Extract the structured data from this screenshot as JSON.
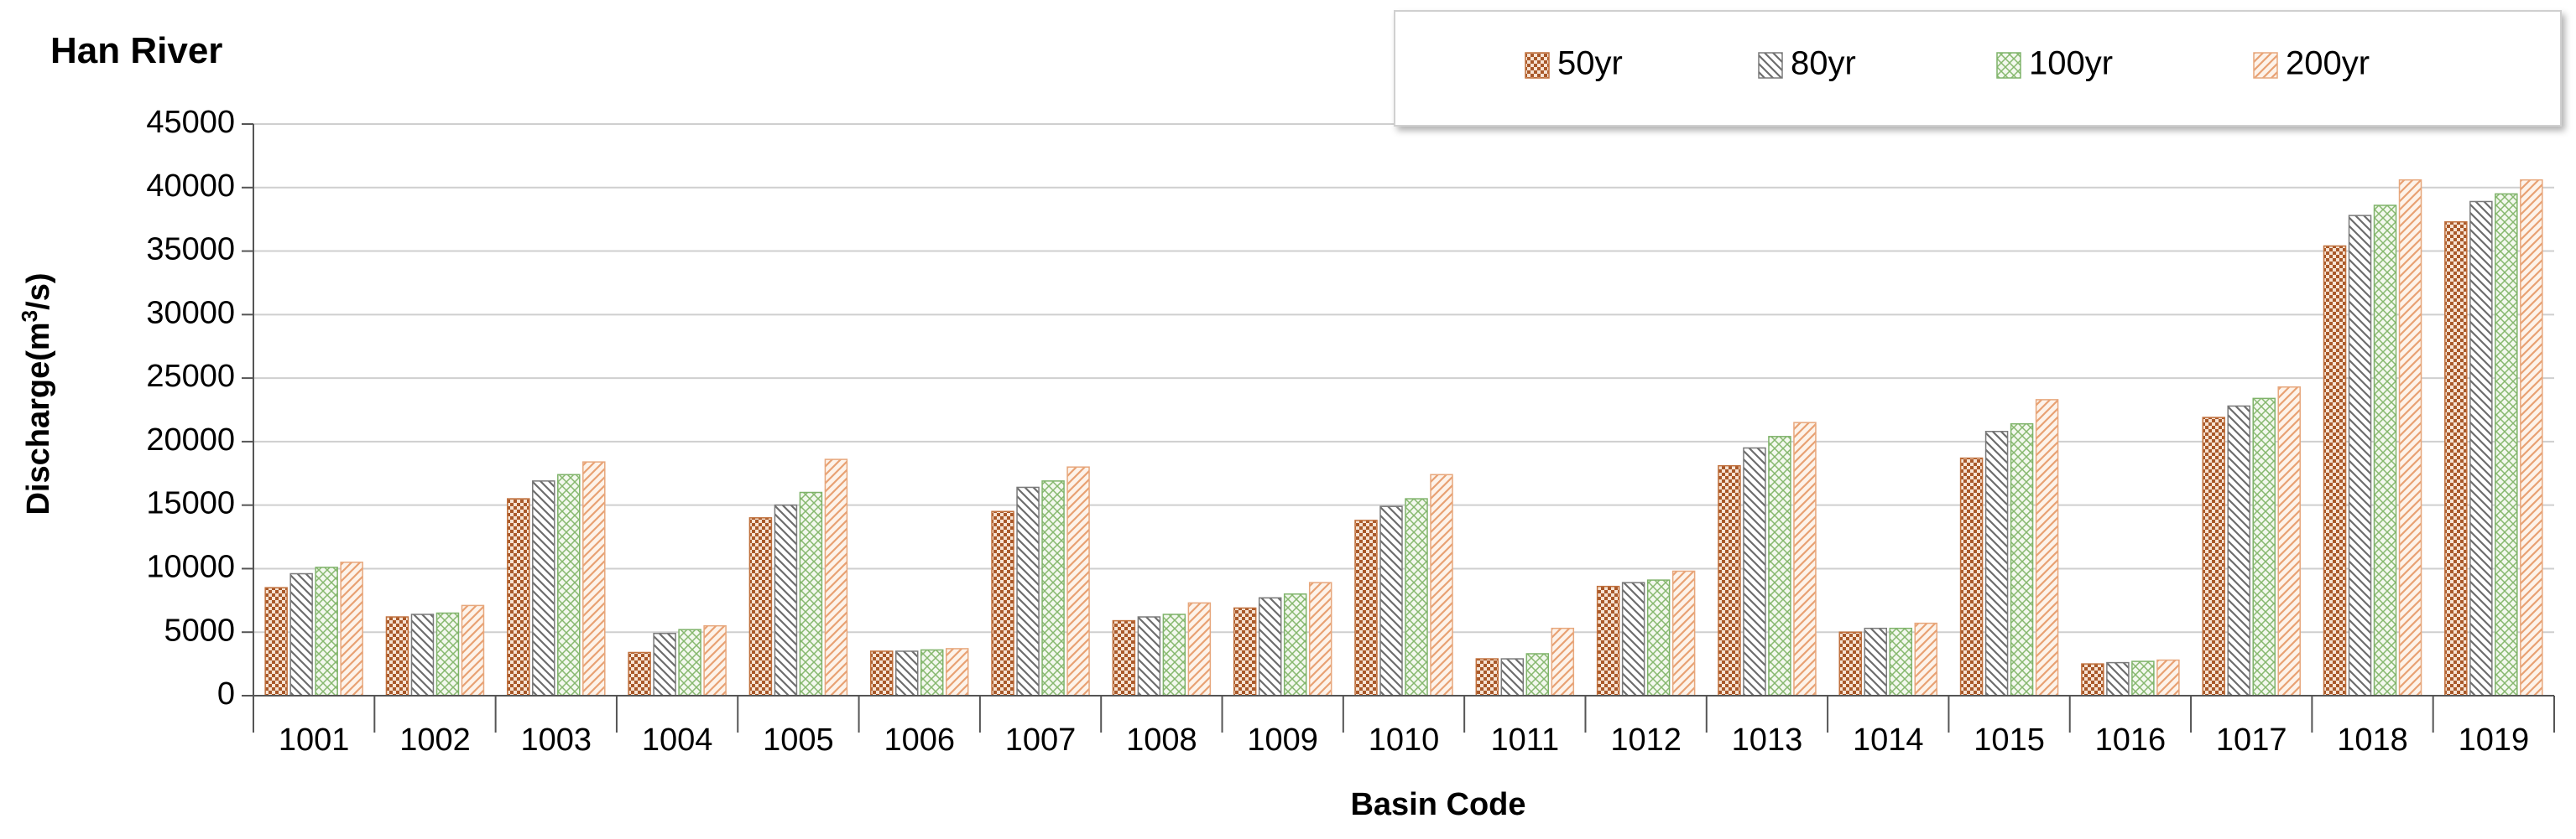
{
  "chart_data": {
    "type": "bar",
    "title": "Han River",
    "xlabel": "Basin Code",
    "ylabel": "Discharge(m³/s)",
    "ylabel_parts": {
      "before": "Discharge(m",
      "sup": "3",
      "after": "/s)"
    },
    "ylim": [
      0,
      45000
    ],
    "yticks": [
      0,
      5000,
      10000,
      15000,
      20000,
      25000,
      30000,
      35000,
      40000,
      45000
    ],
    "grid": true,
    "legend_position": "top-right",
    "categories": [
      "1001",
      "1002",
      "1003",
      "1004",
      "1005",
      "1006",
      "1007",
      "1008",
      "1009",
      "1010",
      "1011",
      "1012",
      "1013",
      "1014",
      "1015",
      "1016",
      "1017",
      "1018",
      "1019"
    ],
    "series": [
      {
        "name": "50yr",
        "color": "#c0703c",
        "pattern": "checker",
        "values": [
          8500,
          6200,
          15500,
          3400,
          14000,
          3500,
          14500,
          5900,
          6900,
          13800,
          2900,
          8600,
          18100,
          5000,
          18700,
          2500,
          21900,
          35400,
          37300
        ]
      },
      {
        "name": "80yr",
        "color": "#7a7a7a",
        "pattern": "diagonal-back",
        "values": [
          9600,
          6400,
          16900,
          4900,
          15000,
          3500,
          16400,
          6200,
          7700,
          14900,
          2900,
          8900,
          19500,
          5300,
          20800,
          2600,
          22800,
          37800,
          38900
        ]
      },
      {
        "name": "100yr",
        "color": "#7fb36a",
        "pattern": "crosshatch",
        "values": [
          10100,
          6500,
          17400,
          5200,
          16000,
          3600,
          16900,
          6400,
          8000,
          15500,
          3300,
          9100,
          20400,
          5300,
          21400,
          2700,
          23400,
          38600,
          39500
        ]
      },
      {
        "name": "200yr",
        "color": "#e7a77c",
        "pattern": "diagonal-forward",
        "values": [
          10500,
          7100,
          18400,
          5500,
          18600,
          3700,
          18000,
          7300,
          8900,
          17400,
          5300,
          9800,
          21500,
          5700,
          23300,
          2800,
          24300,
          40600,
          40600
        ]
      }
    ]
  }
}
